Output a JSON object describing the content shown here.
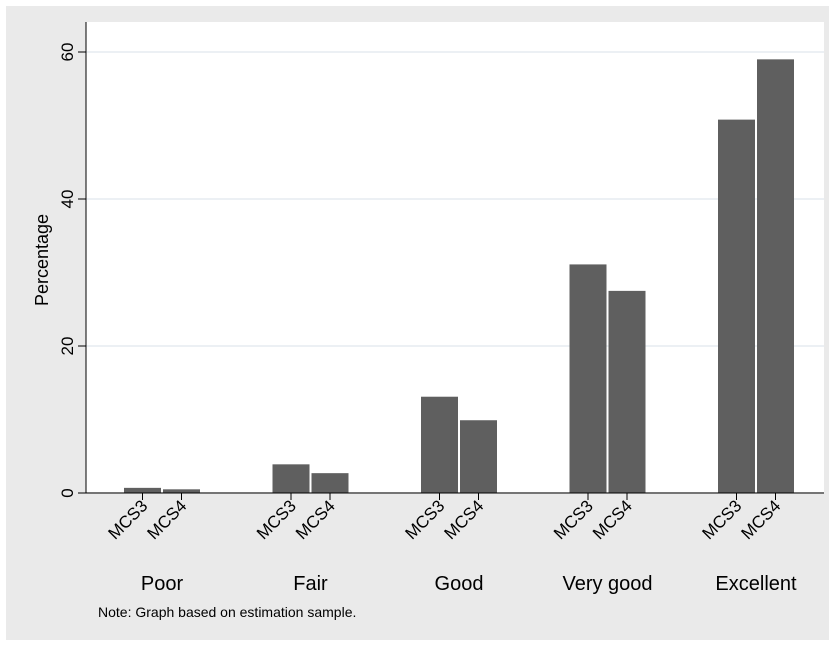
{
  "chart_data": {
    "type": "bar",
    "title": "",
    "xlabel": "",
    "ylabel": "Percentage",
    "ylim": [
      0,
      62
    ],
    "yticks": [
      0,
      20,
      40,
      60
    ],
    "grid": true,
    "categories": [
      "Poor",
      "Fair",
      "Good",
      "Very good",
      "Excellent"
    ],
    "subcategories": [
      "MCS3",
      "MCS4"
    ],
    "series": [
      {
        "name": "MCS3",
        "values": [
          0.7,
          3.9,
          13.1,
          31.1,
          50.8
        ]
      },
      {
        "name": "MCS4",
        "values": [
          0.5,
          2.7,
          9.9,
          27.5,
          59.0
        ]
      }
    ],
    "bar_color": "#5f5f5f",
    "note": "Note: Graph based on estimation sample."
  }
}
